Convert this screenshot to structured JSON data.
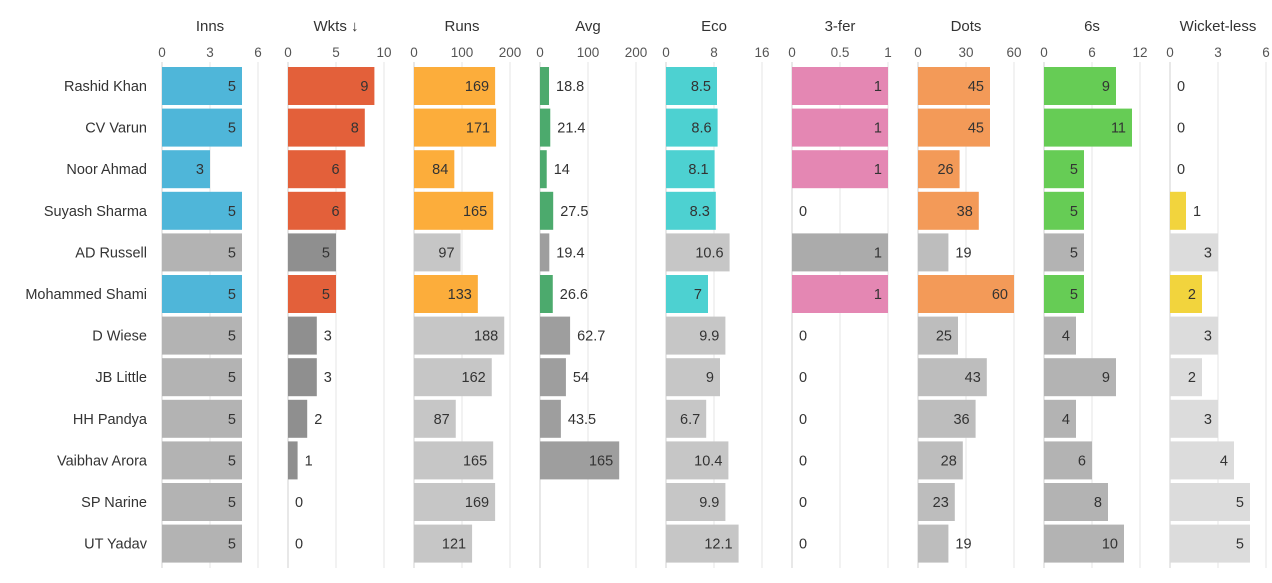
{
  "chart_data": {
    "type": "bar",
    "orientation": "horizontal",
    "layout": "small-multiples",
    "sort_indicator": "↓",
    "sorted_by": "Wkts",
    "players": [
      "Rashid Khan",
      "CV Varun",
      "Noor Ahmad",
      "Suyash Sharma",
      "AD Russell",
      "Mohammed Shami",
      "D Wiese",
      "JB Little",
      "HH Pandya",
      "Vaibhav Arora",
      "SP Narine",
      "UT Yadav"
    ],
    "highlight": [
      true,
      true,
      true,
      true,
      false,
      true,
      false,
      false,
      false,
      false,
      false,
      false
    ],
    "columns": [
      {
        "name": "Inns",
        "ticks": [
          "0",
          "3",
          "6"
        ],
        "xlim": [
          0,
          6
        ],
        "color": "#4fb6d9",
        "grey": "#b3b3b3",
        "values": [
          5,
          5,
          3,
          5,
          5,
          5,
          5,
          5,
          5,
          5,
          5,
          5
        ],
        "labels": [
          "5",
          "5",
          "3",
          "5",
          "5",
          "5",
          "5",
          "5",
          "5",
          "5",
          "5",
          "5"
        ]
      },
      {
        "name": "Wkts",
        "ticks": [
          "0",
          "5",
          "10"
        ],
        "xlim": [
          0,
          10
        ],
        "color": "#e3603a",
        "grey": "#8f8f8f",
        "values": [
          9,
          8,
          6,
          6,
          5,
          5,
          3,
          3,
          2,
          1,
          0,
          0
        ],
        "labels": [
          "9",
          "8",
          "6",
          "6",
          "5",
          "5",
          "3",
          "3",
          "2",
          "1",
          "0",
          "0"
        ]
      },
      {
        "name": "Runs",
        "ticks": [
          "0",
          "100",
          "200"
        ],
        "xlim": [
          0,
          200
        ],
        "color": "#fcad3b",
        "grey": "#c6c6c6",
        "values": [
          169,
          171,
          84,
          165,
          97,
          133,
          188,
          162,
          87,
          165,
          169,
          121
        ],
        "labels": [
          "169",
          "171",
          "84",
          "165",
          "97",
          "133",
          "188",
          "162",
          "87",
          "165",
          "169",
          "121"
        ]
      },
      {
        "name": "Avg",
        "ticks": [
          "0",
          "100",
          "200"
        ],
        "xlim": [
          0,
          200
        ],
        "color": "#4caa6d",
        "grey": "#9e9e9e",
        "values": [
          18.8,
          21.4,
          14,
          27.5,
          19.4,
          26.6,
          62.7,
          54,
          43.5,
          165,
          null,
          null
        ],
        "labels": [
          "18.8",
          "21.4",
          "14",
          "27.5",
          "19.4",
          "26.6",
          "62.7",
          "54",
          "43.5",
          "165",
          "",
          ""
        ]
      },
      {
        "name": "Eco",
        "ticks": [
          "0",
          "8",
          "16"
        ],
        "xlim": [
          0,
          16
        ],
        "color": "#4dd1d1",
        "grey": "#c6c6c6",
        "values": [
          8.5,
          8.6,
          8.1,
          8.3,
          10.6,
          7,
          9.9,
          9,
          6.7,
          10.4,
          9.9,
          12.1
        ],
        "labels": [
          "8.5",
          "8.6",
          "8.1",
          "8.3",
          "10.6",
          "7",
          "9.9",
          "9",
          "6.7",
          "10.4",
          "9.9",
          "12.1"
        ]
      },
      {
        "name": "3-fer",
        "ticks": [
          "0",
          "0.5",
          "1"
        ],
        "xlim": [
          0,
          1
        ],
        "color": "#e487b3",
        "grey": "#ababab",
        "values": [
          1,
          1,
          1,
          0,
          1,
          1,
          0,
          0,
          0,
          0,
          0,
          0
        ],
        "labels": [
          "1",
          "1",
          "1",
          "0",
          "1",
          "1",
          "0",
          "0",
          "0",
          "0",
          "0",
          "0"
        ]
      },
      {
        "name": "Dots",
        "ticks": [
          "0",
          "30",
          "60"
        ],
        "xlim": [
          0,
          60
        ],
        "color": "#f39a58",
        "grey": "#bdbdbd",
        "values": [
          45,
          45,
          26,
          38,
          19,
          60,
          25,
          43,
          36,
          28,
          23,
          19
        ],
        "labels": [
          "45",
          "45",
          "26",
          "38",
          "19",
          "60",
          "25",
          "43",
          "36",
          "28",
          "23",
          "19"
        ]
      },
      {
        "name": "6s",
        "ticks": [
          "0",
          "6",
          "12"
        ],
        "xlim": [
          0,
          12
        ],
        "color": "#66cc55",
        "grey": "#b3b3b3",
        "values": [
          9,
          11,
          5,
          5,
          5,
          5,
          4,
          9,
          4,
          6,
          8,
          10
        ],
        "labels": [
          "9",
          "11",
          "5",
          "5",
          "5",
          "5",
          "4",
          "9",
          "4",
          "6",
          "8",
          "10"
        ]
      },
      {
        "name": "Wicket-less",
        "ticks": [
          "0",
          "3",
          "6"
        ],
        "xlim": [
          0,
          6
        ],
        "color": "#f2d43d",
        "grey": "#dcdcdc",
        "values": [
          0,
          0,
          0,
          1,
          3,
          2,
          3,
          2,
          3,
          4,
          5,
          5
        ],
        "labels": [
          "0",
          "0",
          "0",
          "1",
          "3",
          "2",
          "3",
          "2",
          "3",
          "4",
          "5",
          "5"
        ]
      }
    ]
  }
}
